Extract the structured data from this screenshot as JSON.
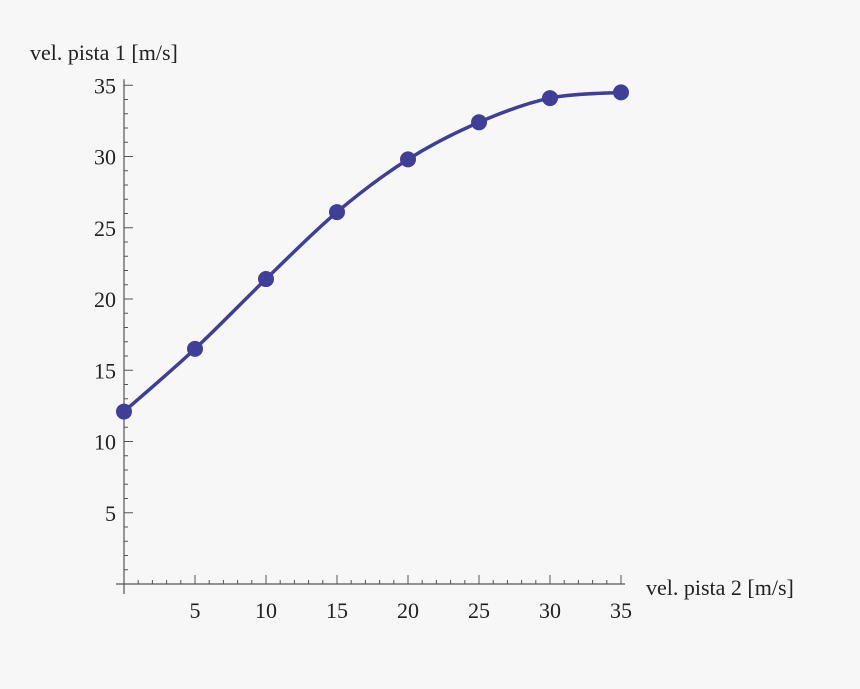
{
  "chart_data": {
    "type": "line",
    "title": "",
    "xlabel": "vel. pista  2 [m/s]",
    "ylabel": "vel. pista  1 [m/s]",
    "xlim": [
      0,
      35
    ],
    "ylim": [
      0,
      35
    ],
    "xticks": [
      5,
      10,
      15,
      20,
      25,
      30,
      35
    ],
    "yticks": [
      5,
      10,
      15,
      20,
      25,
      30,
      35
    ],
    "grid": false,
    "legend": "none",
    "series": [
      {
        "markers": true,
        "smooth": true,
        "x": [
          0,
          5,
          10,
          15,
          20,
          25,
          30,
          35
        ],
        "y": [
          12.1,
          16.5,
          21.4,
          26.1,
          29.8,
          32.4,
          34.1,
          34.5
        ]
      }
    ],
    "colors": {
      "series": "#3f3f9a",
      "axis": "#555555",
      "background": "#f7f7f7"
    }
  }
}
